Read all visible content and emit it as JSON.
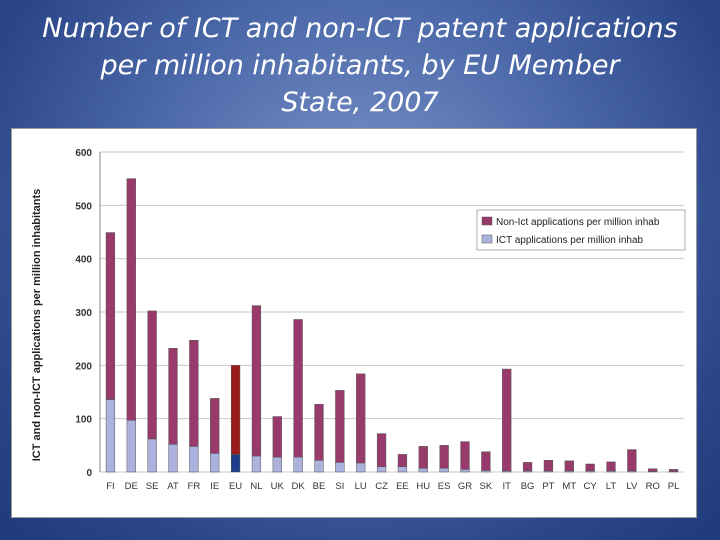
{
  "slide": {
    "title_lines": [
      "Number of ICT and non-ICT patent applications",
      "per million inhabitants, by EU Member",
      "State, 2007"
    ]
  },
  "colors": {
    "background": "#3a57a0",
    "non_ict": "#983a6b",
    "ict": "#aab2dd",
    "eu_non_ict": "#9b1b1b",
    "eu_ict": "#1e3c8c"
  },
  "chart_data": {
    "type": "bar",
    "stacked": true,
    "title": "",
    "xlabel": "",
    "ylabel": "ICT and non-ICT applications per million inhabitants",
    "ylim": [
      0,
      600
    ],
    "yticks": [
      0,
      100,
      200,
      300,
      400,
      500,
      600
    ],
    "grid": true,
    "legend_position": "top-right",
    "highlight_category": "EU",
    "categories": [
      "FI",
      "DE",
      "SE",
      "AT",
      "FR",
      "IE",
      "EU",
      "NL",
      "UK",
      "DK",
      "BE",
      "SI",
      "LU",
      "CZ",
      "EE",
      "HU",
      "ES",
      "GR",
      "SK",
      "IT",
      "BG",
      "PT",
      "MT",
      "CY",
      "LT",
      "LV",
      "RO",
      "PL"
    ],
    "series": [
      {
        "name": "ICT applications per million inhab",
        "values": [
          136,
          97,
          62,
          52,
          48,
          35,
          33,
          30,
          28,
          28,
          22,
          18,
          17,
          10,
          10,
          7,
          7,
          5,
          3,
          2,
          2,
          2,
          2,
          2,
          2,
          2,
          1,
          1
        ]
      },
      {
        "name": "Non-Ict applications per million inhab",
        "values": [
          313,
          453,
          240,
          180,
          199,
          103,
          167,
          282,
          76,
          258,
          105,
          135,
          167,
          62,
          23,
          41,
          43,
          52,
          35,
          191,
          16,
          20,
          19,
          13,
          17,
          40,
          5,
          4
        ]
      }
    ]
  }
}
